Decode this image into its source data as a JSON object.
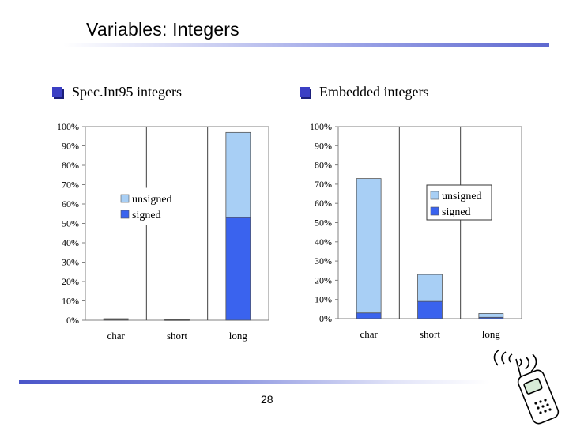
{
  "slide": {
    "title": "Variables: Integers",
    "page_number": "28"
  },
  "bullets": [
    {
      "label": "Spec.Int95 integers"
    },
    {
      "label": "Embedded integers"
    }
  ],
  "colors": {
    "unsigned": "#a8cff5",
    "signed": "#3a63ee",
    "bullet": "#3b3fc4"
  },
  "icons": [
    "bullet-square-icon",
    "cellphone-icon"
  ],
  "chart_data": [
    {
      "type": "bar",
      "stacked": true,
      "categories": [
        "char",
        "short",
        "long"
      ],
      "series": [
        {
          "name": "signed",
          "values": [
            0.3,
            0.2,
            53
          ]
        },
        {
          "name": "unsigned",
          "values": [
            0.5,
            0.2,
            44
          ]
        }
      ],
      "yticks": [
        "0%",
        "10%",
        "20%",
        "30%",
        "40%",
        "50%",
        "60%",
        "70%",
        "80%",
        "90%",
        "100%"
      ],
      "ylim": [
        0,
        100
      ],
      "grid": "vertical",
      "legend_position": "upper-left"
    },
    {
      "type": "bar",
      "stacked": true,
      "categories": [
        "char",
        "short",
        "long"
      ],
      "series": [
        {
          "name": "signed",
          "values": [
            3,
            9,
            0.7
          ]
        },
        {
          "name": "unsigned",
          "values": [
            70,
            14,
            2
          ]
        }
      ],
      "yticks": [
        "0%",
        "10%",
        "20%",
        "30%",
        "40%",
        "50%",
        "60%",
        "70%",
        "80%",
        "90%",
        "100%"
      ],
      "ylim": [
        0,
        100
      ],
      "grid": "vertical",
      "legend_position": "upper-right"
    }
  ]
}
